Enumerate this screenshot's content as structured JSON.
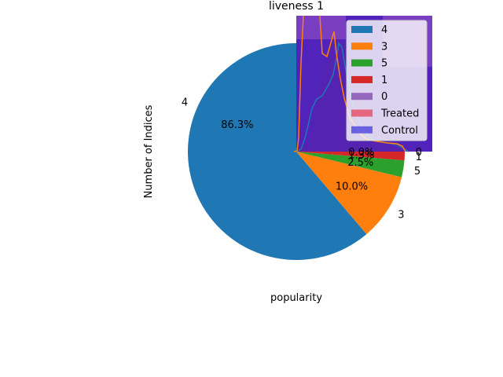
{
  "chart_data": [
    {
      "type": "pie",
      "title": "liveness 1",
      "xlabel": "popularity",
      "ylabel": "Number of Indices",
      "slices": [
        {
          "label": "4",
          "value": 86.3,
          "pct_label": "86.3%",
          "color": "#1f77b4"
        },
        {
          "label": "3",
          "value": 10.0,
          "pct_label": "10.0%",
          "color": "#ff7f0e"
        },
        {
          "label": "5",
          "value": 2.5,
          "pct_label": "2.5%",
          "color": "#2ca02c"
        },
        {
          "label": "1",
          "value": 1.3,
          "pct_label": "1.3%",
          "color": "#d62728"
        },
        {
          "label": "0",
          "value": 0.0,
          "pct_label": "0.0%",
          "color": "#9467bd"
        }
      ]
    },
    {
      "type": "area",
      "series": [
        {
          "name": "Treated",
          "color": "#e8384f"
        },
        {
          "name": "Control",
          "color": "#3b2fde"
        }
      ]
    }
  ],
  "legend": {
    "position": "top-right",
    "entries": [
      {
        "label": "4",
        "color": "#1f77b4"
      },
      {
        "label": "3",
        "color": "#ff7f0e"
      },
      {
        "label": "5",
        "color": "#2ca02c"
      },
      {
        "label": "1",
        "color": "#d62728"
      },
      {
        "label": "0",
        "color": "#9467bd"
      },
      {
        "label": "Treated",
        "color": "#e8384f"
      },
      {
        "label": "Control",
        "color": "#3b2fde"
      }
    ]
  }
}
